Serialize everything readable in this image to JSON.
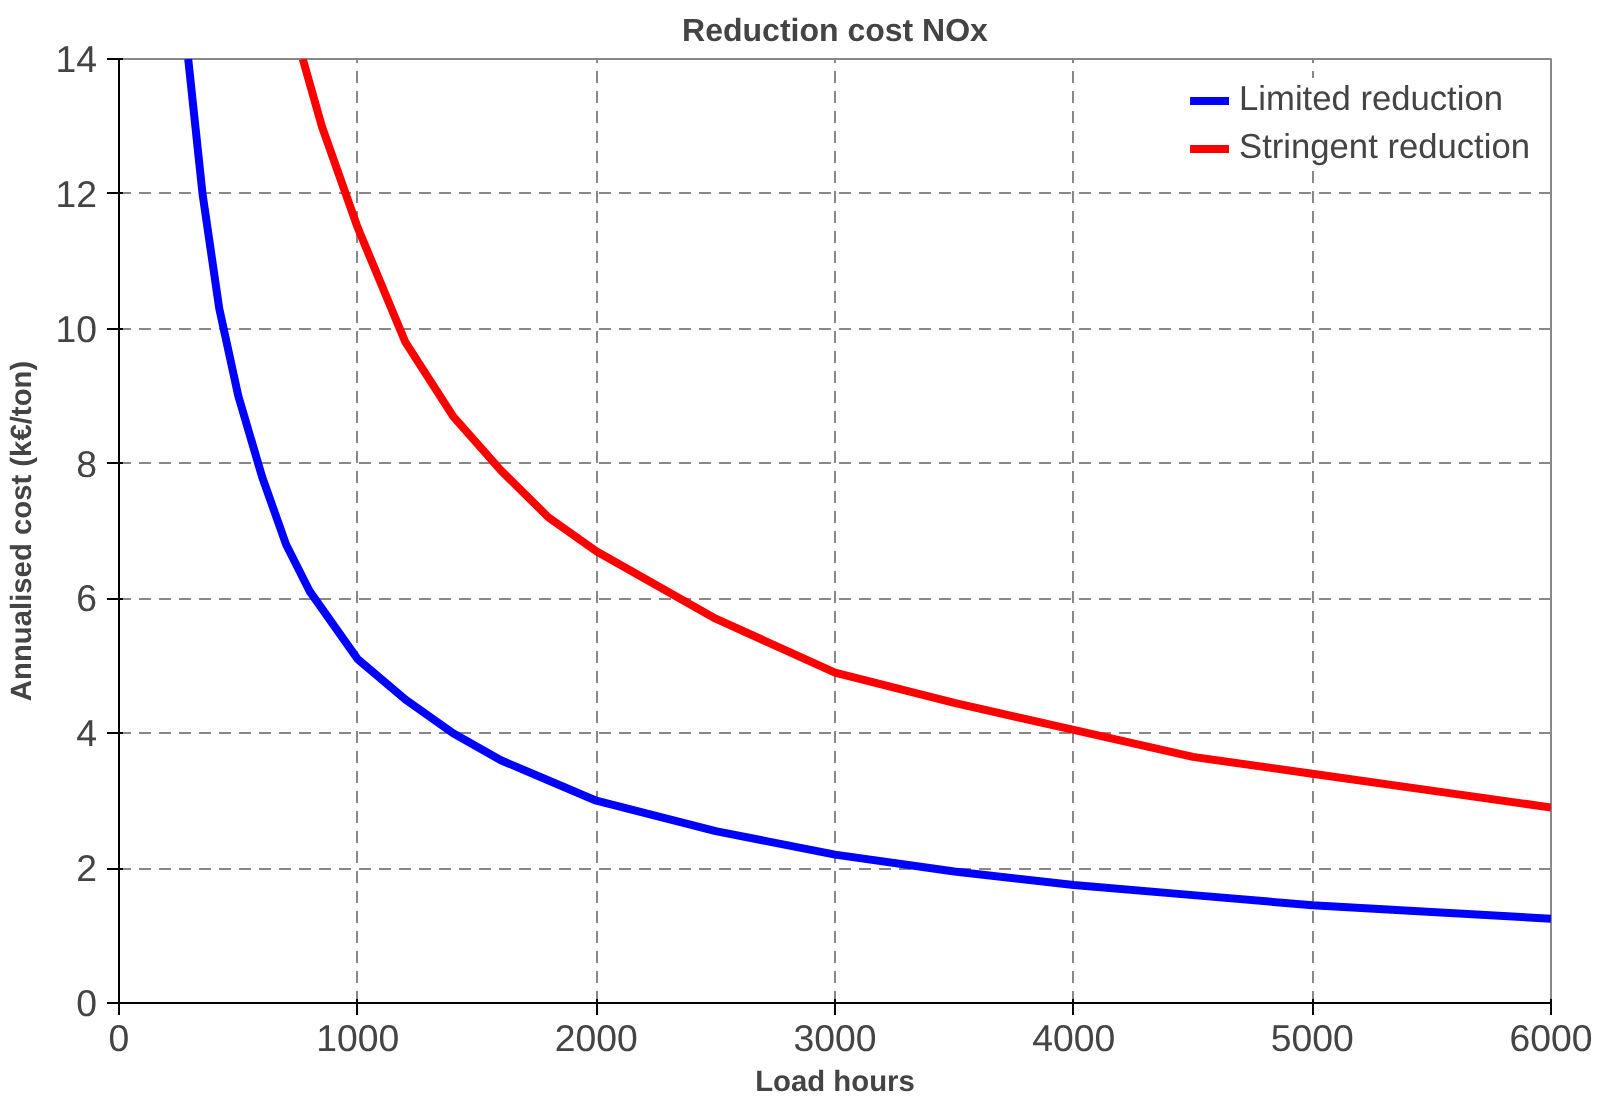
{
  "chart_data": {
    "type": "line",
    "title": "Reduction cost NOx",
    "xlabel": "Load hours",
    "ylabel": "Annualised cost (k€/ton)",
    "xlim": [
      0,
      6000
    ],
    "xticks": [
      0,
      1000,
      2000,
      3000,
      4000,
      5000,
      6000
    ],
    "ylim": [
      0,
      14
    ],
    "yticks": [
      0,
      2,
      4,
      6,
      8,
      10,
      12,
      14
    ],
    "grid": true,
    "legend": "top right",
    "line_style": "solid",
    "marker": "none",
    "series": [
      {
        "name": "Limited reduction",
        "color": "#0000ff",
        "x": [
          290,
          350,
          420,
          500,
          600,
          700,
          800,
          900,
          1000,
          1200,
          1400,
          1600,
          1800,
          2000,
          2500,
          3000,
          3500,
          4000,
          4500,
          5000,
          5500,
          6000
        ],
        "values": [
          14,
          12,
          10.3,
          9,
          7.8,
          6.8,
          6.1,
          5.6,
          5.1,
          4.5,
          4.0,
          3.6,
          3.3,
          3.0,
          2.55,
          2.2,
          1.95,
          1.75,
          1.6,
          1.45,
          1.35,
          1.25
        ]
      },
      {
        "name": "Stringent reduction",
        "color": "#ff0000",
        "x": [
          770,
          850,
          1000,
          1200,
          1400,
          1600,
          1800,
          2000,
          2200,
          2500,
          3000,
          3500,
          4000,
          4500,
          5000,
          5500,
          6000
        ],
        "values": [
          14,
          13,
          11.5,
          9.8,
          8.7,
          7.9,
          7.2,
          6.7,
          6.3,
          5.7,
          4.9,
          4.45,
          4.05,
          3.65,
          3.4,
          3.15,
          2.9
        ]
      }
    ]
  }
}
